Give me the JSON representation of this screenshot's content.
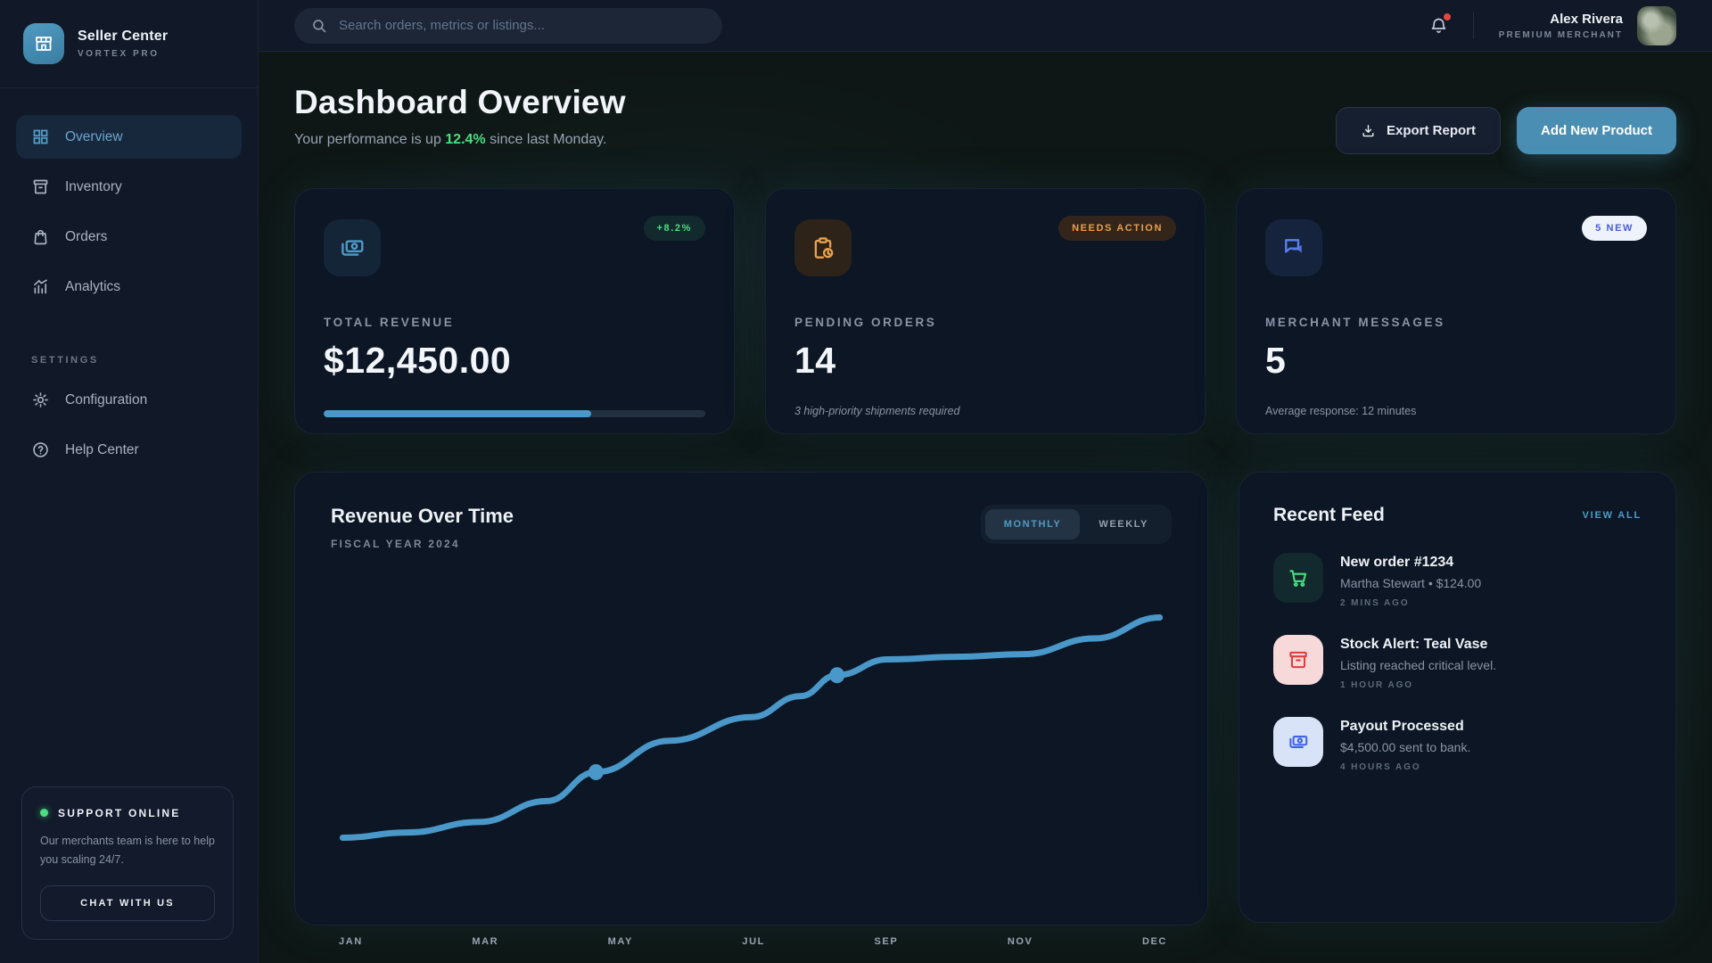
{
  "brand": {
    "name": "Seller Center",
    "plan": "VORTEX PRO"
  },
  "topbar": {
    "search_placeholder": "Search orders, metrics or listings...",
    "user_name": "Alex Rivera",
    "user_role": "PREMIUM MERCHANT"
  },
  "sidebar": {
    "nav": [
      {
        "label": "Overview",
        "icon": "grid-icon",
        "active": true
      },
      {
        "label": "Inventory",
        "icon": "box-icon",
        "active": false
      },
      {
        "label": "Orders",
        "icon": "bag-icon",
        "active": false
      },
      {
        "label": "Analytics",
        "icon": "chart-icon",
        "active": false
      }
    ],
    "section_label": "SETTINGS",
    "settings_nav": [
      {
        "label": "Configuration",
        "icon": "gear-icon"
      },
      {
        "label": "Help Center",
        "icon": "help-icon"
      }
    ],
    "support": {
      "status": "SUPPORT ONLINE",
      "text": "Our merchants team is here to help you scaling 24/7.",
      "button": "CHAT WITH US"
    }
  },
  "header": {
    "title": "Dashboard Overview",
    "subtitle_prefix": "Your performance is up ",
    "subtitle_highlight": "12.4%",
    "subtitle_suffix": " since last Monday.",
    "export_button": "Export Report",
    "add_button": "Add New Product"
  },
  "stats": [
    {
      "label": "TOTAL REVENUE",
      "value": "$12,450.00",
      "badge": "+8.2%",
      "icon": "banknote-icon",
      "progress_percent": 70
    },
    {
      "label": "PENDING ORDERS",
      "value": "14",
      "badge": "NEEDS ACTION",
      "icon": "clipboard-clock-icon",
      "note": "3 high-priority shipments required"
    },
    {
      "label": "MERCHANT MESSAGES",
      "value": "5",
      "badge": "5 NEW",
      "icon": "chat-bubbles-icon",
      "note": "Average response: 12 minutes"
    }
  ],
  "chart_card": {
    "title": "Revenue Over Time",
    "subtitle": "FISCAL YEAR 2024",
    "toggle_monthly": "MONTHLY",
    "toggle_weekly": "WEEKLY",
    "active_toggle": "MONTHLY"
  },
  "chart_data": {
    "type": "line",
    "title": "Revenue Over Time",
    "subtitle": "FISCAL YEAR 2024",
    "x_tick_labels": [
      "JAN",
      "MAR",
      "MAY",
      "JUL",
      "SEP",
      "NOV",
      "DEC"
    ],
    "y_range": [
      0,
      100
    ],
    "grid": false,
    "legend": false,
    "line_color": "#4a97c9",
    "series": [
      {
        "name": "Revenue",
        "points": [
          [
            0.0,
            8
          ],
          [
            0.08,
            10
          ],
          [
            0.167,
            14
          ],
          [
            0.25,
            22
          ],
          [
            0.31,
            33
          ],
          [
            0.4,
            45
          ],
          [
            0.5,
            54
          ],
          [
            0.56,
            62
          ],
          [
            0.605,
            70
          ],
          [
            0.667,
            76
          ],
          [
            0.75,
            77
          ],
          [
            0.833,
            78
          ],
          [
            0.92,
            84
          ],
          [
            1.0,
            92
          ]
        ]
      }
    ],
    "markers": [
      [
        0.31,
        33
      ],
      [
        0.605,
        70
      ]
    ]
  },
  "feed": {
    "title": "Recent Feed",
    "view_all": "VIEW ALL",
    "items": [
      {
        "title": "New order #1234",
        "sub": "Martha Stewart • $124.00",
        "time": "2 MINS AGO",
        "icon": "cart-icon"
      },
      {
        "title": "Stock Alert: Teal Vase",
        "sub": "Listing reached critical level.",
        "time": "1 HOUR AGO",
        "icon": "archive-icon"
      },
      {
        "title": "Payout Processed",
        "sub": "$4,500.00 sent to bank.",
        "time": "4 HOURS AGO",
        "icon": "banknote-icon"
      }
    ]
  },
  "colors": {
    "accent": "#4a97c9",
    "positive_green": "#4ade80",
    "warning_orange": "#e8a04c",
    "alert_red": "#e03b3b",
    "badge_indigo": "#4a5bd8"
  }
}
